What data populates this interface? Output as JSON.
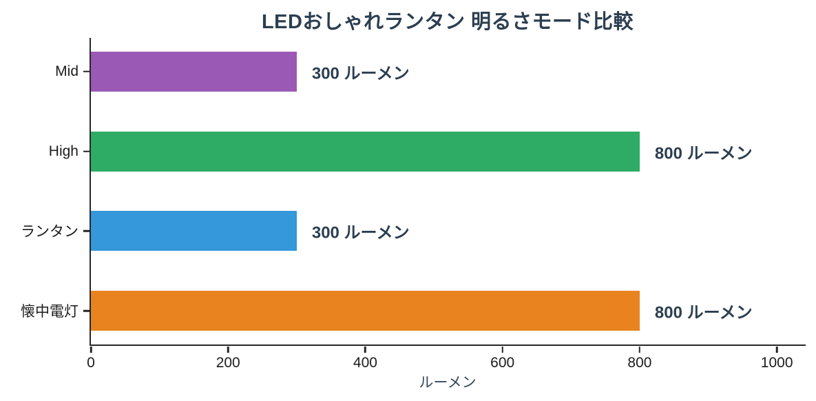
{
  "chart_data": {
    "type": "bar",
    "orientation": "horizontal",
    "title": "LEDおしゃれランタン 明るさモード比較",
    "xlabel": "ルーメン",
    "categories": [
      "Mid",
      "High",
      "ランタン",
      "懐中電灯"
    ],
    "values": [
      300,
      800,
      300,
      800
    ],
    "bar_labels": [
      "300 ルーメン",
      "800 ルーメン",
      "300 ルーメン",
      "800 ルーメン"
    ],
    "bar_colors": [
      "#9b59b6",
      "#2eac66",
      "#3498db",
      "#e8831f"
    ],
    "x_ticks": [
      0,
      200,
      400,
      600,
      800,
      1000
    ],
    "xlim": [
      0,
      1042
    ],
    "grid": false,
    "legend": false,
    "title_color": "#2c3e50",
    "value_label_color": "#2c3e50",
    "xlabel_color": "#34495e",
    "axis_color": "#262626",
    "tick_label_color": "#1c1c1c"
  }
}
